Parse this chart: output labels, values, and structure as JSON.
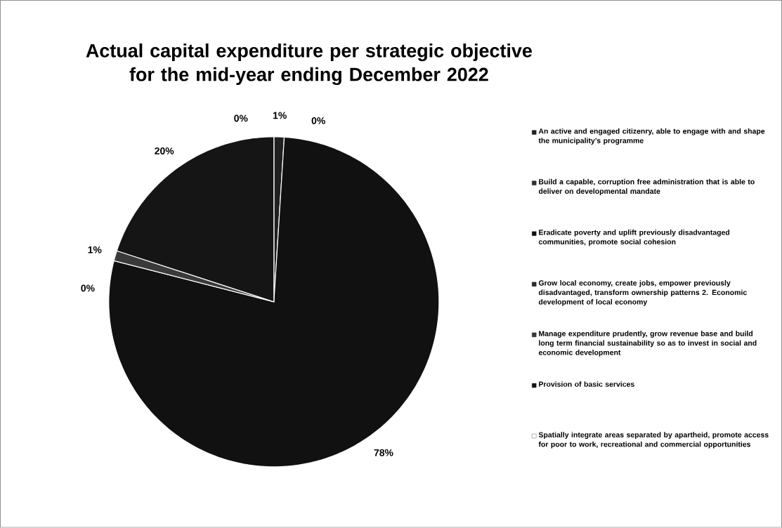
{
  "chart_data": {
    "type": "pie",
    "title": "Actual capital expenditure per strategic objective for the mid-year ending December 2022",
    "categories": [
      "An active and engaged citizenry, able to engage with and shape the municipality’s programme",
      "Build a capable, corruption free administration that is able to deliver on developmental mandate",
      "Eradicate poverty and uplift previously disadvantaged communities, promote social cohesion",
      "Grow local economy, create jobs, empower previously disadvantaged, transform ownership patterns 2. Economic development of local economy",
      "Manage expenditure prudently, grow revenue base and build long term financial sustainability so as to invest in social and economic development",
      "Provision of basic services",
      "Spatially integrate areas separated by apartheid, promote access for poor to work, recreational and commercial opportunities"
    ],
    "values": [
      1,
      0,
      78,
      0,
      1,
      20,
      0
    ],
    "value_labels": [
      "1%",
      "0%",
      "78%",
      "0%",
      "1%",
      "20%",
      "0%"
    ],
    "colors": [
      "#202020",
      "#303030",
      "#111111",
      "#2b2b2b",
      "#3a3a3a",
      "#151515",
      "#ffffff"
    ],
    "legend": "right"
  }
}
